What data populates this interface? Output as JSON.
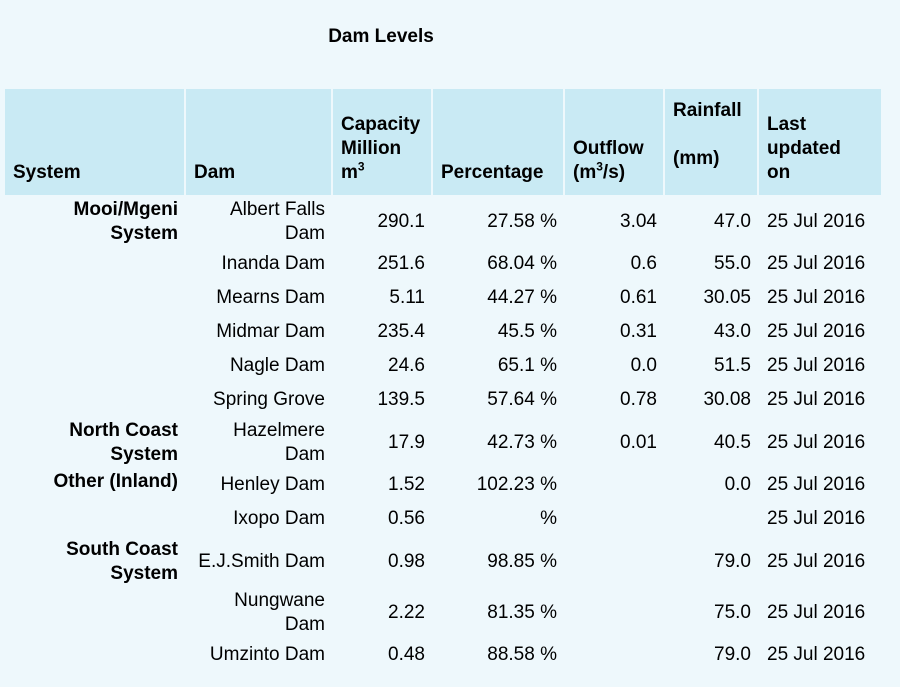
{
  "page_title": "Dam Levels",
  "columns": {
    "system": "System",
    "dam": "Dam",
    "capacity_a": "Capacity",
    "capacity_b": "Million",
    "capacity_unit": "m",
    "capacity_unit_sup": "3",
    "percentage": "Percentage",
    "outflow": "Outflow",
    "outflow_unit_a": "(m",
    "outflow_unit_sup": "3",
    "outflow_unit_b": "/s)",
    "rainfall": "Rainfall",
    "rainfall_unit": "(mm)",
    "updated_a": "Last",
    "updated_b": "updated",
    "updated_c": "on"
  },
  "rows": [
    {
      "system": "Mooi/Mgeni System",
      "dam": "Albert Falls Dam",
      "capacity": "290.1",
      "percentage": "27.58 %",
      "outflow": "3.04",
      "rainfall": "47.0",
      "updated": "25 Jul 2016"
    },
    {
      "system": "",
      "dam": "Inanda Dam",
      "capacity": "251.6",
      "percentage": "68.04 %",
      "outflow": "0.6",
      "rainfall": "55.0",
      "updated": "25 Jul 2016"
    },
    {
      "system": "",
      "dam": "Mearns Dam",
      "capacity": "5.11",
      "percentage": "44.27 %",
      "outflow": "0.61",
      "rainfall": "30.05",
      "updated": "25 Jul 2016"
    },
    {
      "system": "",
      "dam": "Midmar Dam",
      "capacity": "235.4",
      "percentage": "45.5 %",
      "outflow": "0.31",
      "rainfall": "43.0",
      "updated": "25 Jul 2016"
    },
    {
      "system": "",
      "dam": "Nagle Dam",
      "capacity": "24.6",
      "percentage": "65.1 %",
      "outflow": "0.0",
      "rainfall": "51.5",
      "updated": "25 Jul 2016"
    },
    {
      "system": "",
      "dam": "Spring Grove",
      "capacity": "139.5",
      "percentage": "57.64 %",
      "outflow": "0.78",
      "rainfall": "30.08",
      "updated": "25 Jul 2016"
    },
    {
      "system": "North Coast System",
      "dam": "Hazelmere Dam",
      "capacity": "17.9",
      "percentage": "42.73 %",
      "outflow": "0.01",
      "rainfall": "40.5",
      "updated": "25 Jul 2016"
    },
    {
      "system": "Other (Inland)",
      "dam": "Henley Dam",
      "capacity": "1.52",
      "percentage": "102.23 %",
      "outflow": "",
      "rainfall": "0.0",
      "updated": "25 Jul 2016"
    },
    {
      "system": "",
      "dam": "Ixopo Dam",
      "capacity": "0.56",
      "percentage": "%",
      "outflow": "",
      "rainfall": "",
      "updated": "25 Jul 2016"
    },
    {
      "system": "South Coast System",
      "dam": "E.J.Smith Dam",
      "capacity": "0.98",
      "percentage": "98.85 %",
      "outflow": "",
      "rainfall": "79.0",
      "updated": "25 Jul 2016"
    },
    {
      "system": "",
      "dam": "Nungwane Dam",
      "capacity": "2.22",
      "percentage": "81.35 %",
      "outflow": "",
      "rainfall": "75.0",
      "updated": "25 Jul 2016"
    },
    {
      "system": "",
      "dam": "Umzinto Dam",
      "capacity": "0.48",
      "percentage": "88.58 %",
      "outflow": "",
      "rainfall": "79.0",
      "updated": "25 Jul 2016"
    }
  ]
}
